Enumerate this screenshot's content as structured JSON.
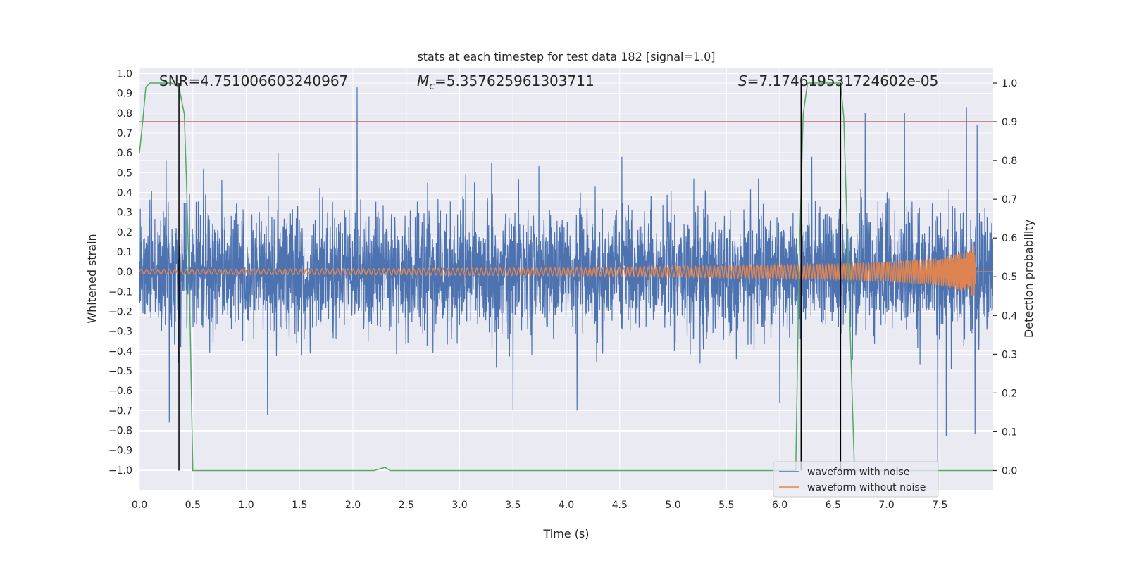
{
  "chart_data": {
    "type": "line",
    "title": "stats at each timestep for test data 182 [signal=1.0]",
    "xlabel": "Time (s)",
    "ylabel": "Whitened strain",
    "y2label": "Detection probability",
    "xlim": [
      0.0,
      8.0
    ],
    "ylim": [
      -1.1,
      1.03
    ],
    "y2lim": [
      -0.05,
      1.04
    ],
    "x_ticks": [
      0.0,
      0.5,
      1.0,
      1.5,
      2.0,
      2.5,
      3.0,
      3.5,
      4.0,
      4.5,
      5.0,
      5.5,
      6.0,
      6.5,
      7.0,
      7.5
    ],
    "x_tick_labels": [
      "0.0",
      "0.5",
      "1.0",
      "1.5",
      "2.0",
      "2.5",
      "3.0",
      "3.5",
      "4.0",
      "4.5",
      "5.0",
      "5.5",
      "6.0",
      "6.5",
      "7.0",
      "7.5"
    ],
    "y_ticks": [
      1.0,
      0.9,
      0.8,
      0.7,
      0.6,
      0.5,
      0.4,
      0.3,
      0.2,
      0.1,
      0.0,
      -0.1,
      -0.2,
      -0.3,
      -0.4,
      -0.5,
      -0.6,
      -0.7,
      -0.8,
      -0.9,
      -1.0
    ],
    "y_tick_labels": [
      "1.0",
      "0.9",
      "0.8",
      "0.7",
      "0.6",
      "0.5",
      "0.4",
      "0.3",
      "0.2",
      "0.1",
      "0.0",
      "−0.1",
      "−0.2",
      "−0.3",
      "−0.4",
      "−0.5",
      "−0.6",
      "−0.7",
      "−0.8",
      "−0.9",
      "−1.0"
    ],
    "y2_ticks": [
      1.0,
      0.9,
      0.8,
      0.7,
      0.6,
      0.5,
      0.4,
      0.3,
      0.2,
      0.1,
      0.0
    ],
    "y2_tick_labels": [
      "1.0",
      "0.9",
      "0.8",
      "0.7",
      "0.6",
      "0.5",
      "0.4",
      "0.3",
      "0.2",
      "0.1",
      "0.0"
    ],
    "grid": true,
    "legend_position": "lower-right",
    "annotations": {
      "snr": "SNR=4.751006603240967",
      "mc_symbol": "M",
      "mc_sub": "c",
      "mc_value": "=5.357625961303711",
      "s_symbol": "S",
      "s_value": "=7.174619531724602e-05"
    },
    "threshold": 0.9,
    "vlines_x": [
      0.37,
      6.2,
      6.57
    ],
    "series": [
      {
        "name": "waveform with noise",
        "color": "#4c72b0",
        "axis": "left",
        "noise_std": 0.15,
        "peak_points": [
          [
            0.25,
            0.56
          ],
          [
            0.6,
            0.52
          ],
          [
            1.3,
            0.6
          ],
          [
            2.04,
            0.93
          ],
          [
            3.3,
            0.55
          ],
          [
            4.52,
            0.58
          ],
          [
            6.3,
            0.58
          ],
          [
            6.8,
            0.8
          ],
          [
            7.17,
            0.8
          ],
          [
            7.75,
            0.83
          ],
          [
            7.85,
            0.74
          ]
        ],
        "trough_points": [
          [
            0.28,
            -0.76
          ],
          [
            1.2,
            -0.72
          ],
          [
            3.5,
            -0.7
          ],
          [
            4.1,
            -0.7
          ],
          [
            6.0,
            -0.66
          ],
          [
            7.48,
            -0.97
          ],
          [
            7.56,
            -0.83
          ],
          [
            7.83,
            -0.82
          ]
        ]
      },
      {
        "name": "waveform without noise",
        "color": "#dd8452",
        "axis": "left",
        "envelope": [
          [
            0.0,
            0.012
          ],
          [
            2.0,
            0.015
          ],
          [
            4.0,
            0.02
          ],
          [
            5.5,
            0.03
          ],
          [
            6.5,
            0.04
          ],
          [
            7.0,
            0.05
          ],
          [
            7.5,
            0.07
          ],
          [
            7.75,
            0.1
          ],
          [
            7.82,
            0.13
          ],
          [
            7.84,
            0.0
          ],
          [
            8.0,
            0.0
          ]
        ]
      },
      {
        "name": "Detection probability",
        "color": "#55a868",
        "axis": "right",
        "points": [
          [
            0.0,
            0.82
          ],
          [
            0.03,
            0.9
          ],
          [
            0.06,
            0.99
          ],
          [
            0.1,
            1.0
          ],
          [
            0.3,
            1.0
          ],
          [
            0.37,
            0.99
          ],
          [
            0.42,
            0.92
          ],
          [
            0.44,
            0.75
          ],
          [
            0.47,
            0.45
          ],
          [
            0.5,
            0.0
          ],
          [
            2.2,
            0.0
          ],
          [
            2.3,
            0.008
          ],
          [
            2.35,
            0.0
          ],
          [
            6.15,
            0.0
          ],
          [
            6.18,
            0.52
          ],
          [
            6.22,
            0.92
          ],
          [
            6.26,
            1.0
          ],
          [
            6.57,
            1.0
          ],
          [
            6.6,
            0.91
          ],
          [
            6.65,
            0.45
          ],
          [
            6.7,
            0.0
          ],
          [
            8.0,
            0.0
          ]
        ]
      }
    ]
  }
}
